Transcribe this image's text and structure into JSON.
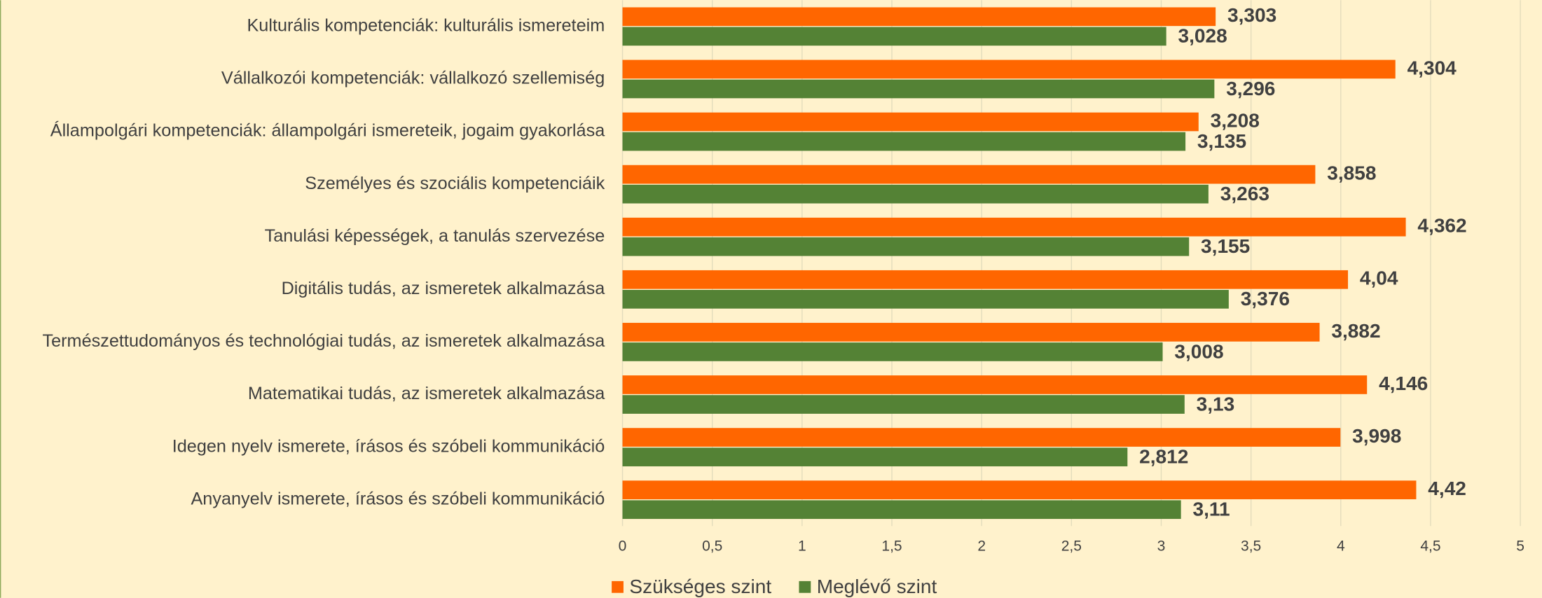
{
  "chart_data": {
    "type": "bar",
    "orientation": "horizontal",
    "categories": [
      "Kulturális kompetenciák: kulturális ismereteim",
      "Vállalkozói kompetenciák: vállalkozó szellemiség",
      "Állampolgári kompetenciák: állampolgári ismereteik, jogaim gyakorlása",
      "Személyes és szociális kompetenciáik",
      "Tanulási képességek, a tanulás szervezése",
      "Digitális tudás, az ismeretek alkalmazása",
      "Természettudományos és technológiai tudás, az ismeretek alkalmazása",
      "Matematikai tudás, az ismeretek alkalmazása",
      "Idegen nyelv ismerete, írásos és szóbeli kommunikáció",
      "Anyanyelv ismerete, írásos és szóbeli kommunikáció"
    ],
    "series": [
      {
        "name": "Szükséges szint",
        "color": "#ff6600",
        "values": [
          3.303,
          4.304,
          3.208,
          3.858,
          4.362,
          4.04,
          3.882,
          4.146,
          3.998,
          4.42
        ],
        "value_labels": [
          "3,303",
          "4,304",
          "3,208",
          "3,858",
          "4,362",
          "4,04",
          "3,882",
          "4,146",
          "3,998",
          "4,42"
        ]
      },
      {
        "name": "Meglévő szint",
        "color": "#548235",
        "values": [
          3.028,
          3.296,
          3.135,
          3.263,
          3.155,
          3.376,
          3.008,
          3.13,
          2.812,
          3.11
        ],
        "value_labels": [
          "3,028",
          "3,296",
          "3,135",
          "3,263",
          "3,155",
          "3,376",
          "3,008",
          "3,13",
          "2,812",
          "3,11"
        ]
      }
    ],
    "xlim": [
      0,
      5
    ],
    "xticks": [
      0,
      {
        "value": 0.5,
        "label": "0,5"
      },
      1,
      {
        "value": 1.5,
        "label": "1,5"
      },
      2,
      {
        "value": 2.5,
        "label": "2,5"
      },
      3,
      {
        "value": 3.5,
        "label": "3,5"
      },
      4,
      {
        "value": 4.5,
        "label": "4,5"
      },
      5
    ],
    "grid": true,
    "legend": "bottom"
  }
}
